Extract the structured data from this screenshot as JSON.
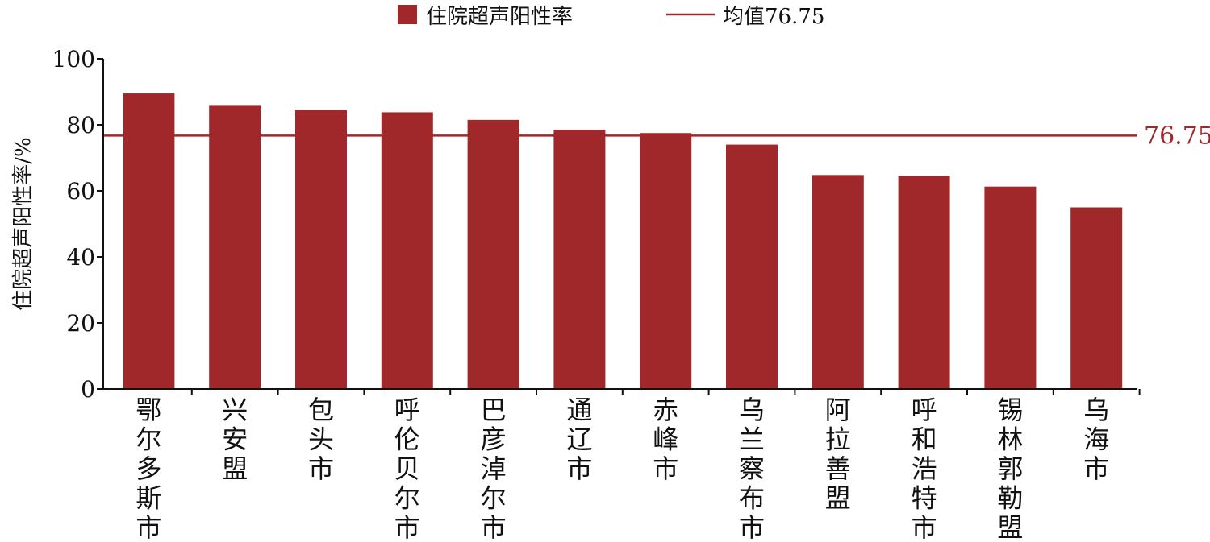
{
  "chart_data": {
    "type": "bar",
    "categories": [
      "鄂尔多斯市",
      "兴安盟",
      "包头市",
      "呼伦贝尔市",
      "巴彦淖尔市",
      "通辽市",
      "赤峰市",
      "乌兰察布市",
      "阿拉善盟",
      "呼和浩特市",
      "锡林郭勒盟",
      "乌海市"
    ],
    "series": [
      {
        "name": "住院超声阳性率",
        "values": [
          89.5,
          86.0,
          84.5,
          83.8,
          81.5,
          78.5,
          77.5,
          74.0,
          64.8,
          64.5,
          61.3,
          55.0
        ]
      }
    ],
    "reference_line": {
      "name": "均值76.75",
      "value": 76.75,
      "label": "76.75"
    },
    "ylabel": "住院超声阳性率/%",
    "xlabel": "",
    "title": "",
    "ylim": [
      0,
      100
    ],
    "yticks": [
      0,
      20,
      40,
      60,
      80,
      100
    ],
    "grid": false,
    "legend_position": "top-center",
    "colors": {
      "bar": "#A0282A",
      "line": "#A0282A",
      "axis": "#111111"
    }
  }
}
